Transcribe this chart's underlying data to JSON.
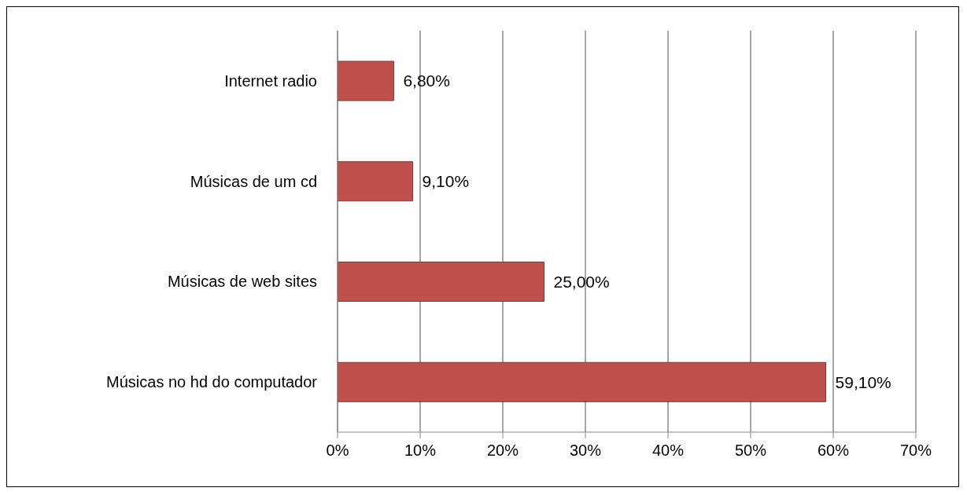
{
  "chart_data": {
    "type": "bar",
    "orientation": "horizontal",
    "categories": [
      "Internet radio",
      "Músicas de um cd",
      "Músicas de web sites",
      "Músicas no hd do computador"
    ],
    "values": [
      6.8,
      9.1,
      25.0,
      59.1
    ],
    "value_labels": [
      "6,80%",
      "9,10%",
      "25,00%",
      "59,10%"
    ],
    "color": "#c0504d",
    "xlim": [
      0,
      70
    ],
    "xticks": [
      {
        "value": 0,
        "label": "0%"
      },
      {
        "value": 10,
        "label": "10%"
      },
      {
        "value": 20,
        "label": "20%"
      },
      {
        "value": 30,
        "label": "30%"
      },
      {
        "value": 40,
        "label": "40%"
      },
      {
        "value": 50,
        "label": "50%"
      },
      {
        "value": 60,
        "label": "60%"
      },
      {
        "value": 70,
        "label": "70%"
      }
    ],
    "grid": "x"
  }
}
